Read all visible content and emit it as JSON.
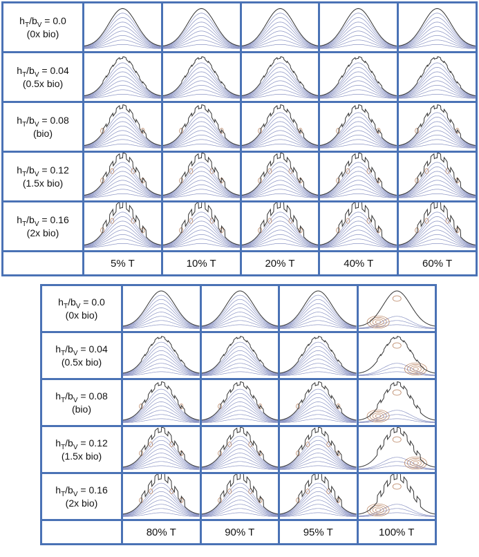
{
  "rows": [
    {
      "line1_pre": "h",
      "line1_sub1": "T",
      "line1_mid": "/b",
      "line1_sub2": "V",
      "line1_post": " = 0.0",
      "line2": "(0x bio)",
      "teeth": 0
    },
    {
      "line1_pre": "h",
      "line1_sub1": "T",
      "line1_mid": "/b",
      "line1_sub2": "V",
      "line1_post": " = 0.04",
      "line2": "(0.5x bio)",
      "teeth": 0.04
    },
    {
      "line1_pre": "h",
      "line1_sub1": "T",
      "line1_mid": "/b",
      "line1_sub2": "V",
      "line1_post": " = 0.08",
      "line2": "(bio)",
      "teeth": 0.08
    },
    {
      "line1_pre": "h",
      "line1_sub1": "T",
      "line1_mid": "/b",
      "line1_sub2": "V",
      "line1_post": " = 0.12",
      "line2": "(1.5x bio)",
      "teeth": 0.12
    },
    {
      "line1_pre": "h",
      "line1_sub1": "T",
      "line1_mid": "/b",
      "line1_sub2": "V",
      "line1_post": " = 0.16",
      "line2": "(2x bio)",
      "teeth": 0.16
    }
  ],
  "top_columns": [
    "5% T",
    "10% T",
    "20% T",
    "40% T",
    "60% T"
  ],
  "bottom_columns": [
    "80% T",
    "90% T",
    "95% T",
    "100% T"
  ],
  "colors": {
    "border": "#4a72b5",
    "contour_blue": "#8b94c4",
    "contour_brown": "#b47a55",
    "outline": "#333333"
  }
}
